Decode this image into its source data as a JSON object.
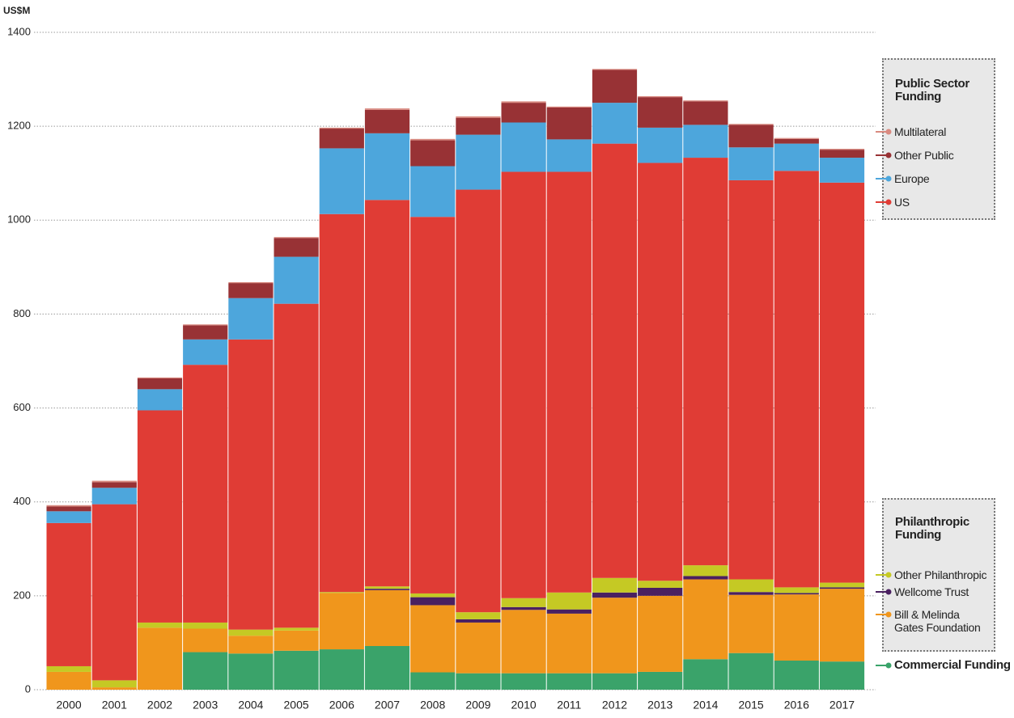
{
  "chart_data": {
    "type": "stacked_bar",
    "y_unit_label": "US$M",
    "categories": [
      "2000",
      "2001",
      "2002",
      "2003",
      "2004",
      "2005",
      "2006",
      "2007",
      "2008",
      "2009",
      "2010",
      "2011",
      "2012",
      "2013",
      "2014",
      "2015",
      "2016",
      "2017"
    ],
    "ylim": [
      0,
      1400
    ],
    "yticks": [
      0,
      200,
      400,
      600,
      800,
      1000,
      1200,
      1400
    ],
    "grid": true,
    "legend_groups": [
      "Public Sector Funding",
      "Philanthropic Funding"
    ],
    "series": [
      {
        "name": "Commercial Funding",
        "color": "#3aa36a",
        "values": [
          0,
          0,
          0,
          80,
          77,
          83,
          86,
          93,
          37,
          35,
          35,
          35,
          35,
          38,
          65,
          78,
          62,
          60
        ]
      },
      {
        "name": "Bill & Melinda Gates Foundation",
        "color": "#f0961c",
        "values": [
          38,
          5,
          132,
          50,
          38,
          43,
          120,
          119,
          143,
          108,
          135,
          127,
          161,
          162,
          170,
          124,
          141,
          155
        ]
      },
      {
        "name": "Wellcome Trust",
        "color": "#4a2060",
        "values": [
          0,
          0,
          0,
          0,
          0,
          0,
          0,
          3,
          17,
          7,
          6,
          9,
          11,
          17,
          7,
          6,
          3,
          3
        ]
      },
      {
        "name": "Other Philanthropic",
        "color": "#c5c924",
        "values": [
          12,
          15,
          11,
          13,
          13,
          6,
          2,
          5,
          8,
          15,
          19,
          36,
          31,
          15,
          23,
          27,
          12,
          10
        ]
      },
      {
        "name": "US",
        "color": "#e03c35",
        "values": [
          305,
          375,
          452,
          549,
          618,
          690,
          805,
          823,
          802,
          900,
          908,
          896,
          925,
          890,
          868,
          850,
          887,
          852
        ]
      },
      {
        "name": "Europe",
        "color": "#4da6dc",
        "values": [
          25,
          35,
          45,
          54,
          88,
          100,
          140,
          142,
          108,
          117,
          105,
          69,
          87,
          75,
          70,
          70,
          58,
          53
        ]
      },
      {
        "name": "Other Public",
        "color": "#983235",
        "values": [
          10,
          12,
          23,
          30,
          32,
          40,
          42,
          50,
          55,
          36,
          42,
          68,
          70,
          65,
          50,
          48,
          10,
          17
        ]
      },
      {
        "name": "Multilateral",
        "color": "#d98a80",
        "values": [
          3,
          3,
          2,
          2,
          2,
          2,
          2,
          3,
          3,
          3,
          3,
          2,
          2,
          2,
          2,
          2,
          2,
          2
        ]
      }
    ]
  }
}
